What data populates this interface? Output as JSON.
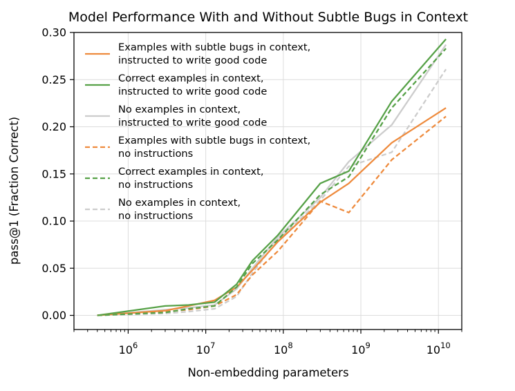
{
  "chart_data": {
    "type": "line",
    "title": "Model Performance With and Without Subtle Bugs in Context",
    "xlabel": "Non-embedding parameters",
    "ylabel": "pass@1 (Fraction Correct)",
    "x_scale": "log",
    "xlim": [
      200000,
      20000000000
    ],
    "ylim": [
      -0.015,
      0.3
    ],
    "grid": true,
    "legend_position": "top-left",
    "x_ticks": [
      {
        "value": 1000000,
        "base": "10",
        "exp": "6"
      },
      {
        "value": 10000000,
        "base": "10",
        "exp": "7"
      },
      {
        "value": 100000000,
        "base": "10",
        "exp": "8"
      },
      {
        "value": 1000000000,
        "base": "10",
        "exp": "9"
      },
      {
        "value": 10000000000,
        "base": "10",
        "exp": "10"
      }
    ],
    "y_ticks": [
      {
        "value": 0.0,
        "label": "0.00"
      },
      {
        "value": 0.05,
        "label": "0.05"
      },
      {
        "value": 0.1,
        "label": "0.10"
      },
      {
        "value": 0.15,
        "label": "0.15"
      },
      {
        "value": 0.2,
        "label": "0.20"
      },
      {
        "value": 0.25,
        "label": "0.25"
      },
      {
        "value": 0.3,
        "label": "0.30"
      }
    ],
    "x": [
      400000,
      3000000,
      6000000,
      13000000,
      25000000,
      40000000,
      85000000,
      300000000,
      700000000,
      2500000000,
      12500000000
    ],
    "series": [
      {
        "name": "Examples with subtle bugs in context,\ninstructed to write good code",
        "color": "#EE8A3C",
        "dash": "solid",
        "values": [
          0.0,
          0.005,
          0.01,
          0.016,
          0.03,
          0.048,
          0.078,
          0.12,
          0.14,
          0.183,
          0.22
        ]
      },
      {
        "name": "Correct examples in context,\ninstructed to write good code",
        "color": "#56A147",
        "dash": "solid",
        "values": [
          0.0,
          0.01,
          0.011,
          0.014,
          0.033,
          0.058,
          0.085,
          0.14,
          0.153,
          0.227,
          0.293
        ]
      },
      {
        "name": "No examples in context,\ninstructed to write good code",
        "color": "#CCCCCC",
        "dash": "solid",
        "values": [
          0.0,
          0.006,
          0.008,
          0.011,
          0.028,
          0.05,
          0.083,
          0.125,
          0.163,
          0.202,
          0.287
        ]
      },
      {
        "name": "Examples with subtle bugs in context,\nno instructions",
        "color": "#EE8A3C",
        "dash": "dashed",
        "values": [
          0.0,
          0.004,
          0.006,
          0.01,
          0.022,
          0.043,
          0.068,
          0.121,
          0.109,
          0.165,
          0.211
        ]
      },
      {
        "name": "Correct examples in context,\nno instructions",
        "color": "#56A147",
        "dash": "dashed",
        "values": [
          0.0,
          0.003,
          0.007,
          0.01,
          0.03,
          0.055,
          0.08,
          0.128,
          0.147,
          0.22,
          0.283
        ]
      },
      {
        "name": "No examples in context,\nno instructions",
        "color": "#CCCCCC",
        "dash": "dashed",
        "values": [
          0.0,
          0.002,
          0.004,
          0.007,
          0.02,
          0.045,
          0.08,
          0.122,
          0.158,
          0.173,
          0.261
        ]
      }
    ]
  }
}
